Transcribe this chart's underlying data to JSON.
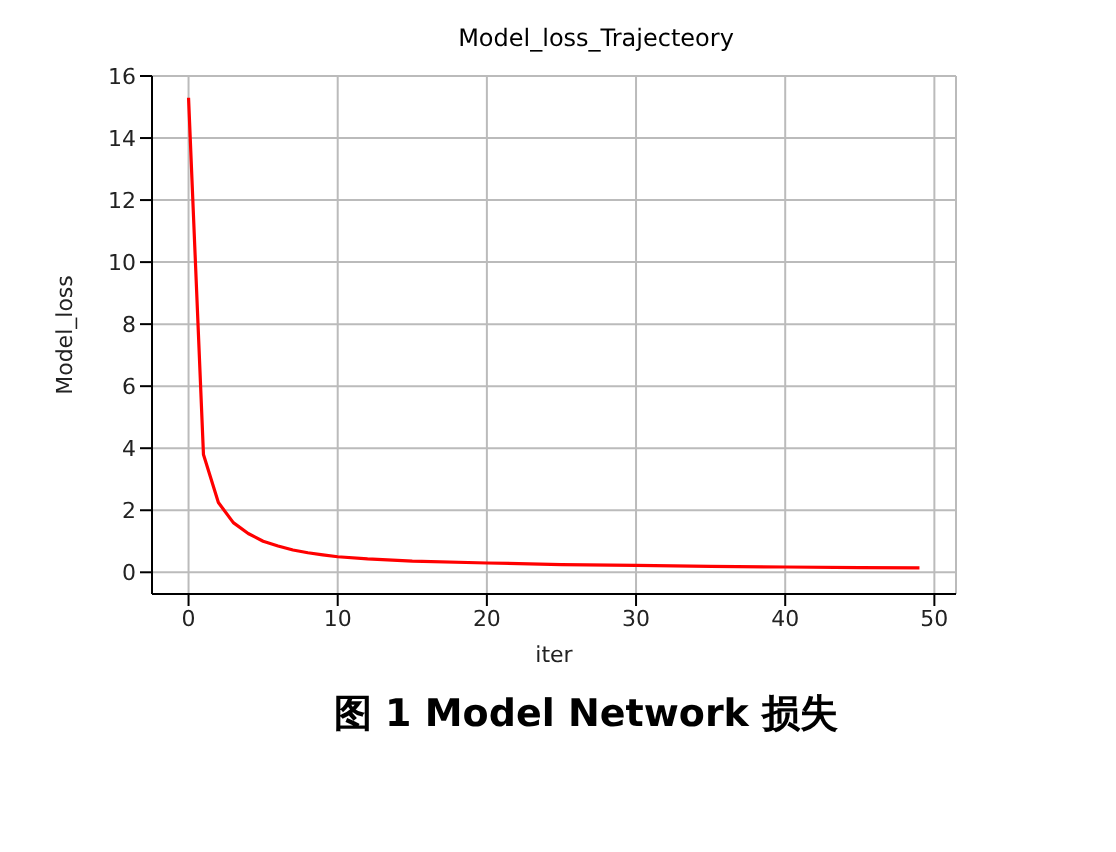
{
  "chart_data": {
    "type": "line",
    "title": "Model_loss_Trajecteory",
    "xlabel": "iter",
    "ylabel": "Model_loss",
    "x": [
      0,
      1,
      2,
      3,
      4,
      5,
      6,
      7,
      8,
      9,
      10,
      12,
      15,
      20,
      25,
      30,
      35,
      40,
      45,
      49
    ],
    "series": [
      {
        "color": "#ff0000",
        "values": [
          15.3,
          3.8,
          2.25,
          1.6,
          1.25,
          1.0,
          0.85,
          0.72,
          0.63,
          0.56,
          0.5,
          0.43,
          0.36,
          0.3,
          0.25,
          0.22,
          0.19,
          0.17,
          0.15,
          0.14
        ]
      }
    ],
    "xlim": [
      -2.45,
      51.45
    ],
    "xticks": [
      0,
      10,
      20,
      30,
      40,
      50
    ],
    "ylim": [
      -0.7,
      16
    ],
    "yticks": [
      0,
      2,
      4,
      6,
      8,
      10,
      12,
      14,
      16
    ],
    "grid": true,
    "annotations": [
      "图 1 Model Network 损失"
    ]
  }
}
